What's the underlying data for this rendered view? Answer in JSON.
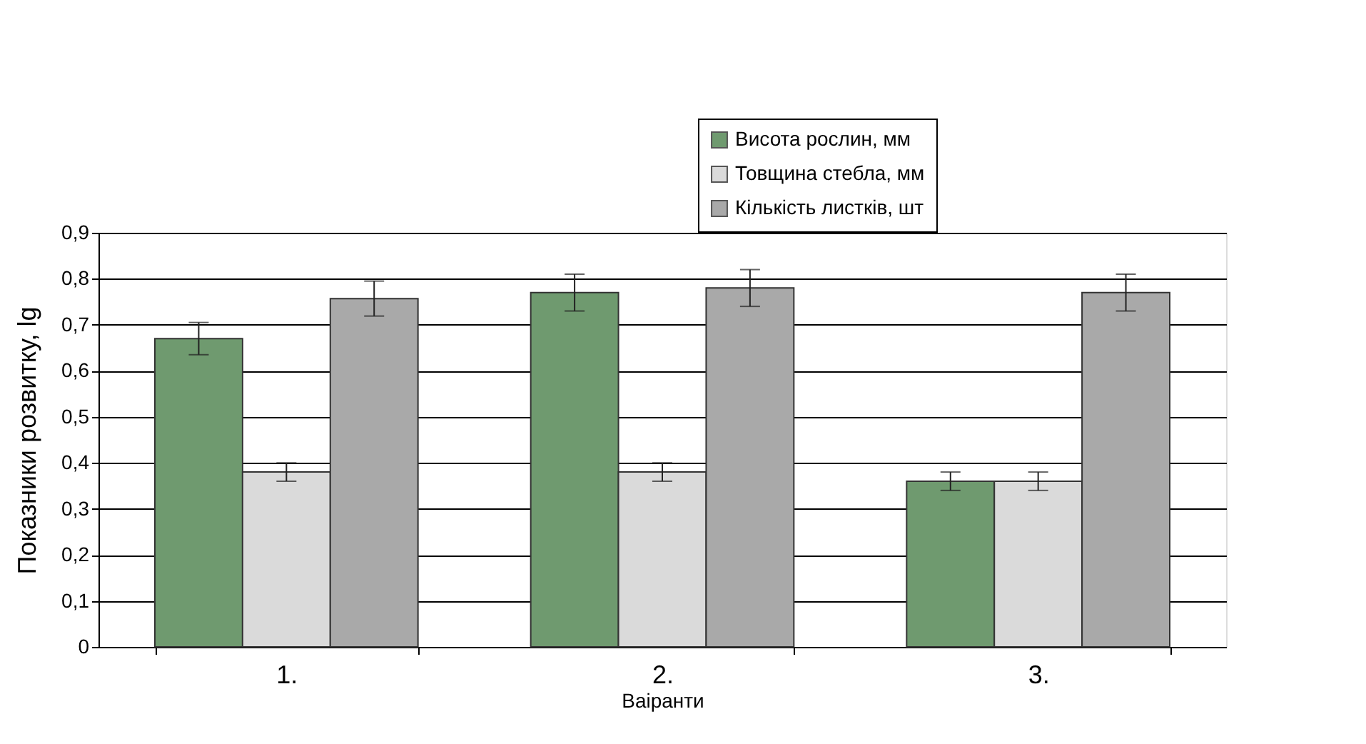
{
  "chart_data": {
    "type": "bar",
    "xlabel": "Ваiранти",
    "ylabel": "Показники розвитку, lg",
    "categories": [
      "1.",
      "2.",
      "3."
    ],
    "series": [
      {
        "name": "Висота рослин, мм",
        "color": "#6f9a6f",
        "values": [
          0.67,
          0.77,
          0.36
        ],
        "errors": [
          0.035,
          0.04,
          0.02
        ]
      },
      {
        "name": "Товщина стебла, мм",
        "color": "#dadada",
        "values": [
          0.38,
          0.38,
          0.36
        ],
        "errors": [
          0.02,
          0.02,
          0.02
        ]
      },
      {
        "name": "Кількість листків, шт",
        "color": "#a9a9a9",
        "values": [
          0.757,
          0.78,
          0.77
        ],
        "errors": [
          0.038,
          0.04,
          0.04
        ]
      }
    ],
    "ylim": [
      0,
      0.9
    ],
    "yticks": [
      0,
      {
        "value": 0.1,
        "label": "0,1"
      },
      {
        "value": 0.2,
        "label": "0,2"
      },
      {
        "value": 0.3,
        "label": "0,3"
      },
      {
        "value": 0.4,
        "label": "0,4"
      },
      {
        "value": 0.5,
        "label": "0,5"
      },
      {
        "value": 0.6,
        "label": "0,6"
      },
      {
        "value": 0.7,
        "label": "0,7"
      },
      {
        "value": 0.8,
        "label": "0,8"
      },
      {
        "value": 0.9,
        "label": "0,9"
      }
    ],
    "grid": "y",
    "legend": "top right"
  }
}
